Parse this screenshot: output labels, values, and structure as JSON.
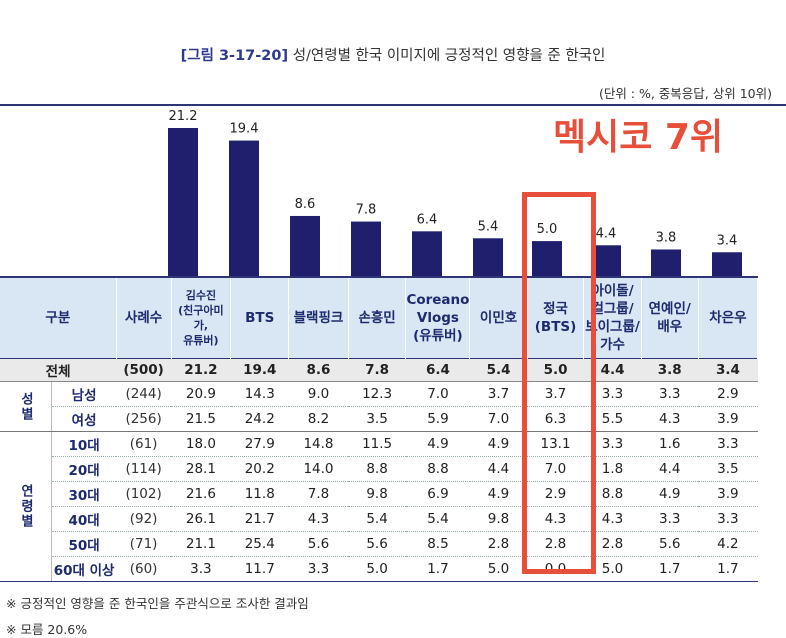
{
  "title": {
    "tag": "[그림 3-17-20]",
    "text": "성/연령별 한국 이미지에 긍정적인 영향을 준 한국인"
  },
  "unit_note": "(단위 : %, 중복응답, 상위 10위)",
  "annotation": "멕시코 7위",
  "colors": {
    "bar": "#1f1f6e",
    "header_bg": "#d9e6f3",
    "highlight": "#e74f3a",
    "total_bg": "#eaeaea"
  },
  "chart_data": {
    "type": "bar",
    "title": "성/연령별 한국 이미지에 긍정적인 영향을 준 한국인",
    "categories": [
      "김수진(친구아미가,유튜버)",
      "BTS",
      "블랙핑크",
      "손흥민",
      "Coreano Vlogs(유튜버)",
      "이민호",
      "정국(BTS)",
      "아이돌/걸그룹/보이그룹/가수",
      "연예인/배우",
      "차은우"
    ],
    "values": [
      21.2,
      19.4,
      8.6,
      7.8,
      6.4,
      5.4,
      5.0,
      4.4,
      3.8,
      3.4
    ],
    "value_labels": [
      "21.2",
      "19.4",
      "8.6",
      "7.8",
      "6.4",
      "5.4",
      "5.0",
      "4.4",
      "3.8",
      "3.4"
    ],
    "ylim": [
      0,
      22
    ],
    "xlabel": "",
    "ylabel": "%",
    "highlight_index": 6
  },
  "table": {
    "header": {
      "group": "구분",
      "count": "사례수",
      "columns": [
        {
          "lines": [
            "김수진",
            "(친구아미가,",
            "유튜버)"
          ]
        },
        {
          "lines": [
            "BTS"
          ]
        },
        {
          "lines": [
            "블랙핑크"
          ]
        },
        {
          "lines": [
            "손흥민"
          ]
        },
        {
          "lines": [
            "Coreano",
            "Vlogs",
            "(유튜버)"
          ]
        },
        {
          "lines": [
            "이민호"
          ]
        },
        {
          "lines": [
            "정국",
            "(BTS)"
          ]
        },
        {
          "lines": [
            "아이돌/",
            "걸그룹/",
            "보이그룹/",
            "가수"
          ]
        },
        {
          "lines": [
            "연예인/",
            "배우"
          ]
        },
        {
          "lines": [
            "차은우"
          ]
        }
      ]
    },
    "total": {
      "label": "전체",
      "count": "(500)",
      "values": [
        "21.2",
        "19.4",
        "8.6",
        "7.8",
        "6.4",
        "5.4",
        "5.0",
        "4.4",
        "3.8",
        "3.4"
      ]
    },
    "groups": [
      {
        "name": "성별",
        "rows": [
          {
            "label": "남성",
            "count": "(244)",
            "values": [
              "20.9",
              "14.3",
              "9.0",
              "12.3",
              "7.0",
              "3.7",
              "3.7",
              "3.3",
              "3.3",
              "2.9"
            ]
          },
          {
            "label": "여성",
            "count": "(256)",
            "values": [
              "21.5",
              "24.2",
              "8.2",
              "3.5",
              "5.9",
              "7.0",
              "6.3",
              "5.5",
              "4.3",
              "3.9"
            ]
          }
        ]
      },
      {
        "name": "연령별",
        "rows": [
          {
            "label": "10대",
            "count": "(61)",
            "values": [
              "18.0",
              "27.9",
              "14.8",
              "11.5",
              "4.9",
              "4.9",
              "13.1",
              "3.3",
              "1.6",
              "3.3"
            ]
          },
          {
            "label": "20대",
            "count": "(114)",
            "values": [
              "28.1",
              "20.2",
              "14.0",
              "8.8",
              "8.8",
              "4.4",
              "7.0",
              "1.8",
              "4.4",
              "3.5"
            ]
          },
          {
            "label": "30대",
            "count": "(102)",
            "values": [
              "21.6",
              "11.8",
              "7.8",
              "9.8",
              "6.9",
              "4.9",
              "2.9",
              "8.8",
              "4.9",
              "3.9"
            ]
          },
          {
            "label": "40대",
            "count": "(92)",
            "values": [
              "26.1",
              "21.7",
              "4.3",
              "5.4",
              "5.4",
              "9.8",
              "4.3",
              "4.3",
              "3.3",
              "3.3"
            ]
          },
          {
            "label": "50대",
            "count": "(71)",
            "values": [
              "21.1",
              "25.4",
              "5.6",
              "5.6",
              "8.5",
              "2.8",
              "2.8",
              "2.8",
              "5.6",
              "4.2"
            ]
          },
          {
            "label": "60대 이상",
            "count": "(60)",
            "values": [
              "3.3",
              "11.7",
              "3.3",
              "5.0",
              "1.7",
              "5.0",
              "0.0",
              "5.0",
              "1.7",
              "1.7"
            ]
          }
        ]
      }
    ]
  },
  "notes": [
    "※ 긍정적인 영향을 준 한국인을 주관식으로 조사한 결과임",
    "※ 모름 20.6%"
  ]
}
